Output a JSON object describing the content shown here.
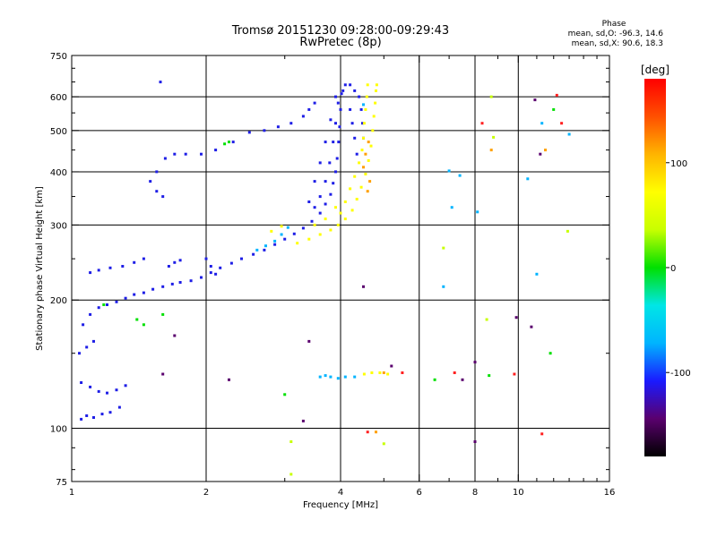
{
  "header": {
    "title": "Tromsø 20151230 09:28:00-09:29:43",
    "subtitle": "RwPretec (8p)"
  },
  "phase_info": {
    "title": "Phase",
    "line_o": "mean, sd,O: -96.3, 14.6",
    "line_x": "mean, sd,X:  90.6, 18.3"
  },
  "chart_data": {
    "type": "scatter",
    "xlabel": "Frequency [MHz]",
    "ylabel": "Stationary phase Virtual Height [km]",
    "x_scale": "log",
    "y_scale": "log",
    "xlim": [
      1,
      16
    ],
    "ylim": [
      75,
      750
    ],
    "x_ticks": [
      1,
      2,
      4,
      6,
      8,
      10,
      16
    ],
    "x_tick_labels": [
      "1",
      "2",
      "4",
      "6",
      "8",
      "10",
      "16"
    ],
    "x_minor_ticks": [
      3,
      5,
      7,
      9,
      11,
      12,
      13,
      14,
      15
    ],
    "y_ticks": [
      75,
      100,
      200,
      300,
      400,
      500,
      600,
      750
    ],
    "y_tick_labels": [
      "75",
      "100",
      "200",
      "300",
      "400",
      "500",
      "600",
      "750"
    ],
    "y_minor_ticks": [
      80,
      90,
      150,
      250,
      350,
      450,
      550,
      650,
      700
    ],
    "grid": true,
    "colorbar": {
      "label": "[deg]",
      "min": -180,
      "max": 180,
      "ticks": [
        100,
        0,
        -100
      ],
      "tick_labels": [
        "100",
        "0",
        "-100"
      ],
      "colors": [
        "#000000",
        "#5a006e",
        "#1a1aff",
        "#00b4ff",
        "#00e6e6",
        "#00e000",
        "#c8ff00",
        "#ffff00",
        "#ffb400",
        "#ff5000",
        "#ff0000"
      ]
    },
    "series": [
      {
        "color": "#1e1ee6",
        "points": [
          [
            1.05,
            105
          ],
          [
            1.08,
            107
          ],
          [
            1.12,
            106
          ],
          [
            1.17,
            108
          ],
          [
            1.22,
            109
          ],
          [
            1.28,
            112
          ],
          [
            1.05,
            128
          ],
          [
            1.1,
            125
          ],
          [
            1.15,
            122
          ],
          [
            1.2,
            121
          ],
          [
            1.26,
            123
          ],
          [
            1.32,
            126
          ],
          [
            1.04,
            150
          ],
          [
            1.08,
            155
          ],
          [
            1.12,
            160
          ],
          [
            1.06,
            175
          ],
          [
            1.1,
            185
          ],
          [
            1.15,
            192
          ],
          [
            1.2,
            195
          ],
          [
            1.26,
            198
          ],
          [
            1.32,
            202
          ],
          [
            1.38,
            206
          ],
          [
            1.45,
            208
          ],
          [
            1.52,
            212
          ],
          [
            1.6,
            215
          ],
          [
            1.68,
            218
          ],
          [
            1.75,
            220
          ],
          [
            1.85,
            222
          ],
          [
            1.95,
            226
          ],
          [
            2.05,
            232
          ],
          [
            2.15,
            238
          ],
          [
            2.28,
            244
          ],
          [
            2.4,
            250
          ],
          [
            2.55,
            256
          ],
          [
            2.7,
            262
          ],
          [
            2.85,
            270
          ],
          [
            3.0,
            278
          ],
          [
            3.15,
            286
          ],
          [
            3.3,
            295
          ],
          [
            3.45,
            306
          ],
          [
            3.6,
            320
          ],
          [
            3.7,
            336
          ],
          [
            3.8,
            354
          ],
          [
            3.85,
            376
          ],
          [
            3.9,
            400
          ],
          [
            3.93,
            430
          ],
          [
            3.96,
            470
          ],
          [
            3.98,
            510
          ],
          [
            4.0,
            560
          ],
          [
            4.02,
            610
          ],
          [
            3.5,
            330
          ],
          [
            3.6,
            350
          ],
          [
            3.7,
            380
          ],
          [
            3.78,
            420
          ],
          [
            3.85,
            470
          ],
          [
            3.9,
            520
          ],
          [
            3.95,
            580
          ],
          [
            3.4,
            340
          ],
          [
            3.5,
            380
          ],
          [
            3.6,
            420
          ],
          [
            3.7,
            470
          ],
          [
            3.8,
            530
          ],
          [
            3.9,
            600
          ],
          [
            4.05,
            620
          ],
          [
            4.1,
            640
          ],
          [
            4.2,
            640
          ],
          [
            4.3,
            620
          ],
          [
            4.4,
            600
          ],
          [
            4.45,
            560
          ],
          [
            4.48,
            520
          ],
          [
            4.5,
            480
          ],
          [
            4.2,
            560
          ],
          [
            4.25,
            520
          ],
          [
            4.3,
            480
          ],
          [
            4.35,
            440
          ],
          [
            3.5,
            580
          ],
          [
            3.4,
            560
          ],
          [
            3.3,
            540
          ],
          [
            3.1,
            520
          ],
          [
            2.9,
            510
          ],
          [
            2.7,
            500
          ],
          [
            2.5,
            495
          ],
          [
            2.3,
            470
          ],
          [
            2.1,
            450
          ],
          [
            1.95,
            440
          ],
          [
            1.8,
            440
          ],
          [
            1.7,
            440
          ],
          [
            1.62,
            430
          ],
          [
            1.55,
            400
          ],
          [
            1.5,
            380
          ],
          [
            1.55,
            360
          ],
          [
            1.6,
            350
          ],
          [
            1.45,
            250
          ],
          [
            1.38,
            245
          ],
          [
            1.3,
            240
          ],
          [
            1.22,
            238
          ],
          [
            1.15,
            235
          ],
          [
            1.1,
            232
          ],
          [
            1.65,
            240
          ],
          [
            1.7,
            245
          ],
          [
            1.75,
            248
          ],
          [
            2.0,
            250
          ],
          [
            2.05,
            240
          ],
          [
            2.1,
            230
          ],
          [
            1.58,
            650
          ]
        ]
      },
      {
        "color": "#ffff00",
        "points": [
          [
            3.2,
            272
          ],
          [
            3.4,
            278
          ],
          [
            3.6,
            285
          ],
          [
            3.8,
            292
          ],
          [
            3.95,
            300
          ],
          [
            4.1,
            310
          ],
          [
            4.25,
            325
          ],
          [
            4.35,
            345
          ],
          [
            4.45,
            368
          ],
          [
            4.55,
            395
          ],
          [
            4.62,
            425
          ],
          [
            4.68,
            460
          ],
          [
            4.72,
            500
          ],
          [
            4.75,
            540
          ],
          [
            4.78,
            580
          ],
          [
            4.8,
            620
          ],
          [
            4.82,
            640
          ],
          [
            4.6,
            640
          ],
          [
            4.58,
            600
          ],
          [
            4.55,
            560
          ],
          [
            4.52,
            520
          ],
          [
            4.5,
            480
          ],
          [
            4.0,
            320
          ],
          [
            4.1,
            340
          ],
          [
            4.2,
            365
          ],
          [
            4.3,
            390
          ],
          [
            4.4,
            420
          ],
          [
            4.47,
            450
          ],
          [
            3.5,
            300
          ],
          [
            3.7,
            310
          ],
          [
            3.9,
            330
          ],
          [
            4.7,
            135
          ],
          [
            4.9,
            135
          ],
          [
            5.1,
            134
          ],
          [
            4.52,
            134
          ],
          [
            2.8,
            290
          ],
          [
            2.95,
            298
          ]
        ]
      },
      {
        "color": "#ffa000",
        "points": [
          [
            4.5,
            410
          ],
          [
            4.55,
            440
          ],
          [
            4.62,
            470
          ],
          [
            4.65,
            380
          ],
          [
            4.6,
            360
          ],
          [
            5.0,
            135
          ],
          [
            4.8,
            98
          ],
          [
            11.5,
            450
          ],
          [
            8.7,
            450
          ]
        ]
      },
      {
        "color": "#00b4ff",
        "points": [
          [
            2.6,
            262
          ],
          [
            2.72,
            268
          ],
          [
            2.85,
            275
          ],
          [
            2.95,
            285
          ],
          [
            3.05,
            296
          ],
          [
            3.6,
            132
          ],
          [
            3.7,
            133
          ],
          [
            3.8,
            132
          ],
          [
            3.95,
            131
          ],
          [
            4.1,
            132
          ],
          [
            4.3,
            132
          ],
          [
            7.4,
            392
          ],
          [
            7.0,
            402
          ],
          [
            7.1,
            330
          ],
          [
            10.5,
            385
          ],
          [
            11.3,
            520
          ],
          [
            6.8,
            215
          ],
          [
            8.1,
            322
          ],
          [
            13.0,
            490
          ],
          [
            11.0,
            230
          ],
          [
            4.5,
            575
          ]
        ]
      },
      {
        "color": "#00e000",
        "points": [
          [
            2.2,
            465
          ],
          [
            2.25,
            470
          ],
          [
            1.4,
            180
          ],
          [
            1.45,
            175
          ],
          [
            3.0,
            120
          ],
          [
            6.5,
            130
          ],
          [
            8.6,
            133
          ],
          [
            12.0,
            560
          ],
          [
            11.8,
            150
          ],
          [
            1.6,
            185
          ],
          [
            1.18,
            195
          ]
        ]
      },
      {
        "color": "#ff2020",
        "points": [
          [
            5.5,
            135
          ],
          [
            7.2,
            135
          ],
          [
            8.3,
            520
          ],
          [
            11.3,
            97
          ],
          [
            4.6,
            98
          ],
          [
            9.8,
            134
          ],
          [
            12.2,
            605
          ],
          [
            12.5,
            520
          ]
        ]
      },
      {
        "color": "#5a006e",
        "points": [
          [
            9.9,
            182
          ],
          [
            10.7,
            173
          ],
          [
            11.2,
            440
          ],
          [
            1.6,
            134
          ],
          [
            1.7,
            165
          ],
          [
            2.25,
            130
          ],
          [
            4.5,
            215
          ],
          [
            7.5,
            130
          ],
          [
            8.0,
            93
          ],
          [
            3.3,
            104
          ],
          [
            5.2,
            140
          ],
          [
            3.4,
            160
          ],
          [
            10.9,
            590
          ],
          [
            8.0,
            143
          ]
        ]
      },
      {
        "color": "#c8ff00",
        "points": [
          [
            8.5,
            180
          ],
          [
            8.7,
            600
          ],
          [
            12.9,
            290
          ],
          [
            6.8,
            265
          ],
          [
            5.0,
            92
          ],
          [
            8.8,
            482
          ],
          [
            3.1,
            93
          ],
          [
            3.1,
            78
          ]
        ]
      }
    ]
  }
}
